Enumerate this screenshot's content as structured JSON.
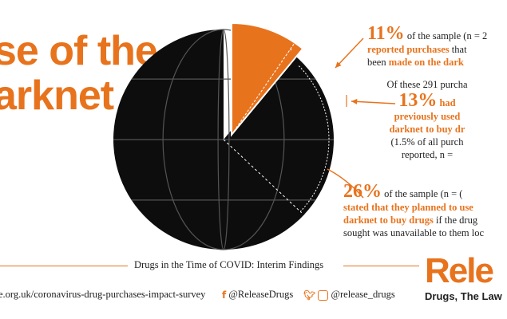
{
  "title": {
    "line1": "se of the",
    "line2": "arknet"
  },
  "colors": {
    "accent": "#e8731d",
    "dark": "#0d0d0d"
  },
  "chart_data": {
    "type": "pie",
    "slices": [
      {
        "label": "reported purchases made on the darknet",
        "value": 11,
        "unit": "%"
      },
      {
        "label": "previously used the darknet to buy drugs",
        "value": 13,
        "unit": "%"
      },
      {
        "label": "planned to use the darknet to buy drugs",
        "value": 26,
        "unit": "%"
      }
    ]
  },
  "annotations": {
    "a1": {
      "pct": "11%",
      "text1": " of the sample (n = 2",
      "hl": "reported purchases",
      "text2": " that",
      "text3": "been ",
      "hl2": "made on the dark"
    },
    "a2": {
      "lead": "Of these 291 purcha",
      "pct": "13%",
      "hl1": " had",
      "hl2": "previously used",
      "hl3": "darknet to buy dr",
      "text1": "(1.5% of all purch",
      "text2": "reported, n ="
    },
    "a3": {
      "pct": "26%",
      "text1": " of the sample (n = (",
      "hl1": "stated that they planned to use",
      "hl2": "darknet to buy drugs",
      "text2": " if the drug",
      "text3": "sought was unavailable to them loc"
    }
  },
  "footer": {
    "title": "Drugs in the Time of COVID: Interim Findings",
    "url": "e.org.uk/coronavirus-drug-purchases-impact-survey",
    "facebook": "@ReleaseDrugs",
    "twitter": "@release_drugs",
    "brand": "Rele",
    "tagline": "Drugs, The Law"
  },
  "icons": [
    "facebook-icon",
    "twitter-icon",
    "instagram-icon"
  ]
}
